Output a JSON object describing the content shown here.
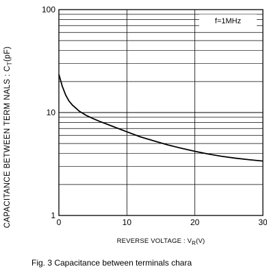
{
  "chart_data": {
    "type": "line",
    "annotation": "f=1MHz",
    "xlabel": "REVERSE  VOLTAGE : V",
    "xlabel_sub": "R",
    "xlabel_unit": "(V)",
    "ylabel": "CAPACITANCE  BETWEEN  TERM NALS : C",
    "ylabel_sub": "T",
    "ylabel_unit": "(pF)",
    "caption": "Fig. 3 Capacitance between terminals chara",
    "xlim": [
      0,
      30
    ],
    "ylim": [
      1,
      100
    ],
    "yscale": "log",
    "grid": true,
    "x_ticks": [
      {
        "value": 0,
        "label": "0"
      },
      {
        "value": 10,
        "label": "10"
      },
      {
        "value": 20,
        "label": "20"
      },
      {
        "value": 30,
        "label": "30"
      }
    ],
    "y_ticks": [
      {
        "value": 1,
        "label": "1"
      },
      {
        "value": 10,
        "label": "10"
      },
      {
        "value": 100,
        "label": "100"
      }
    ],
    "series": [
      {
        "x": [
          0,
          0.5,
          1,
          1.5,
          2,
          3,
          4,
          5,
          6,
          7,
          8,
          10,
          12,
          14,
          16,
          18,
          20,
          22,
          24,
          26,
          28,
          30
        ],
        "y": [
          23.5,
          18,
          14.8,
          12.9,
          11.8,
          10.3,
          9.4,
          8.75,
          8.2,
          7.75,
          7.3,
          6.5,
          5.8,
          5.3,
          4.85,
          4.5,
          4.2,
          3.95,
          3.75,
          3.6,
          3.48,
          3.38
        ]
      }
    ]
  }
}
